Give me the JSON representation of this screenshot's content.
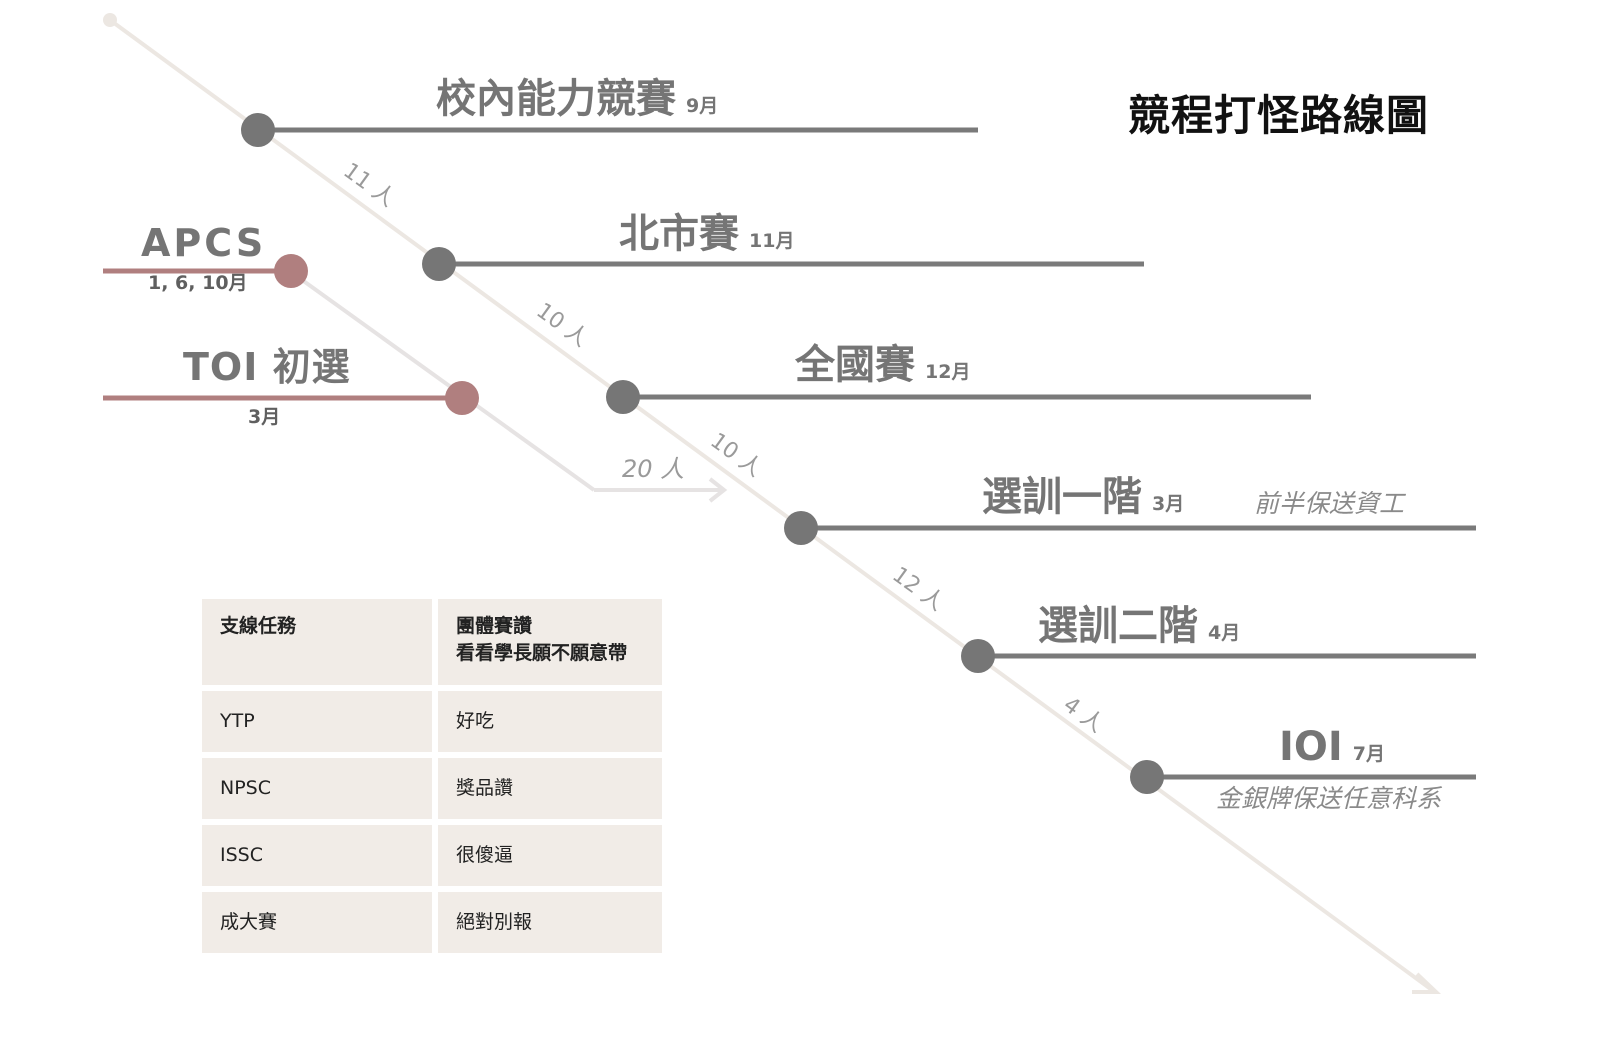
{
  "title": "競程打怪路線圖",
  "main_stages": [
    {
      "name": "校內能力競賽",
      "month": "9月",
      "note": ""
    },
    {
      "name": "北市賽",
      "month": "11月",
      "note": ""
    },
    {
      "name": "全國賽",
      "month": "12月",
      "note": ""
    },
    {
      "name": "選訓一階",
      "month": "3月",
      "note": "前半保送資工"
    },
    {
      "name": "選訓二階",
      "month": "4月",
      "note": ""
    },
    {
      "name": "IOI",
      "month": "7月",
      "note": "金銀牌保送任意科系"
    }
  ],
  "advance_counts": [
    "11 人",
    "10 人",
    "10 人",
    "12 人",
    "4 人"
  ],
  "side_stages": [
    {
      "name": "APCS",
      "month": "1, 6, 10月"
    },
    {
      "name": "TOI 初選",
      "month": "3月"
    }
  ],
  "side_advance_count": "20 人",
  "colors": {
    "main_line": "#7a7a7a",
    "main_node": "#767676",
    "side_line": "#b07f7f",
    "side_node": "#b07f7f",
    "diagonal": "#ece7e2",
    "table_cell": "#f1ece7"
  },
  "side_quests": {
    "header": [
      "支線任務",
      [
        "團體賽讚",
        "看看學長願不願意帶"
      ]
    ],
    "rows": [
      [
        "YTP",
        "好吃"
      ],
      [
        "NPSC",
        "獎品讚"
      ],
      [
        "ISSC",
        "很傻逼"
      ],
      [
        "成大賽",
        "絕對別報"
      ]
    ]
  }
}
